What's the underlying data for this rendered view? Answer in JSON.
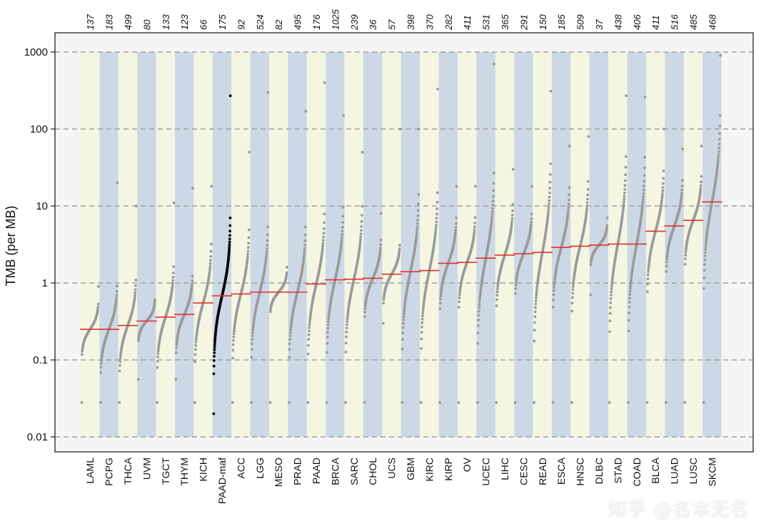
{
  "chart_data": {
    "type": "scatter",
    "ylabel": "TMB (per MB)",
    "yscale": "log",
    "ylim": [
      0.01,
      1000
    ],
    "yticks": [
      0.01,
      0.1,
      1,
      10,
      100,
      1000
    ],
    "ytick_labels": [
      "0.01",
      "0.1",
      "1",
      "10",
      "100",
      "1000"
    ],
    "grid": "horizontal dashed at major ticks",
    "highlight_category": "PAAD-maf",
    "categories": [
      "LAML",
      "PCPG",
      "THCA",
      "UVM",
      "TGCT",
      "THYM",
      "KICH",
      "PAAD-maf",
      "ACC",
      "LGG",
      "MESO",
      "PRAD",
      "PAAD",
      "BRCA",
      "SARC",
      "CHOL",
      "UCS",
      "GBM",
      "KIRC",
      "KIRP",
      "OV",
      "UCEC",
      "LIHC",
      "CESC",
      "READ",
      "ESCA",
      "HNSC",
      "DLBC",
      "STAD",
      "COAD",
      "BLCA",
      "LUAD",
      "LUSC",
      "SKCM"
    ],
    "sample_counts": [
      "137",
      "183",
      "499",
      "80",
      "133",
      "123",
      "66",
      "175",
      "92",
      "524",
      "82",
      "495",
      "176",
      "1025",
      "239",
      "36",
      "57",
      "398",
      "370",
      "282",
      "411",
      "531",
      "365",
      "291",
      "150",
      "185",
      "509",
      "37",
      "438",
      "406",
      "411",
      "516",
      "485",
      "468"
    ],
    "medians": [
      0.25,
      0.25,
      0.28,
      0.32,
      0.36,
      0.39,
      0.55,
      0.68,
      0.72,
      0.76,
      0.76,
      0.76,
      0.97,
      1.1,
      1.12,
      1.15,
      1.3,
      1.4,
      1.45,
      1.8,
      1.85,
      2.1,
      2.3,
      2.4,
      2.5,
      2.9,
      3.0,
      3.1,
      3.2,
      3.2,
      4.7,
      5.5,
      6.5,
      11.3
    ],
    "mins": [
      0.028,
      0.028,
      0.028,
      0.056,
      0.028,
      0.056,
      0.028,
      0.02,
      0.028,
      0.028,
      0.028,
      0.028,
      0.028,
      0.028,
      0.028,
      0.028,
      0.3,
      0.028,
      0.028,
      0.028,
      0.028,
      0.028,
      0.028,
      0.028,
      0.028,
      0.028,
      0.028,
      0.7,
      0.028,
      0.028,
      0.028,
      0.028,
      0.028,
      0.028
    ],
    "maxs": [
      0.9,
      20,
      10,
      0.6,
      11,
      17,
      18,
      270,
      50,
      300,
      1.6,
      170,
      400,
      150,
      50,
      8,
      100,
      100,
      330,
      18,
      18,
      700,
      30,
      18,
      310,
      60,
      80,
      7,
      270,
      260,
      100,
      55,
      60,
      900
    ],
    "colors": {
      "band_light": "#f4f6e2",
      "band_dark": "#ccd8e5",
      "panel_bg": "#f5f5f5",
      "point": "#9a9a9a",
      "point_highlight": "#000000",
      "median_line": "#e2302d",
      "grid": "#a0a0a0"
    }
  },
  "watermark": "知乎 @名本无名"
}
